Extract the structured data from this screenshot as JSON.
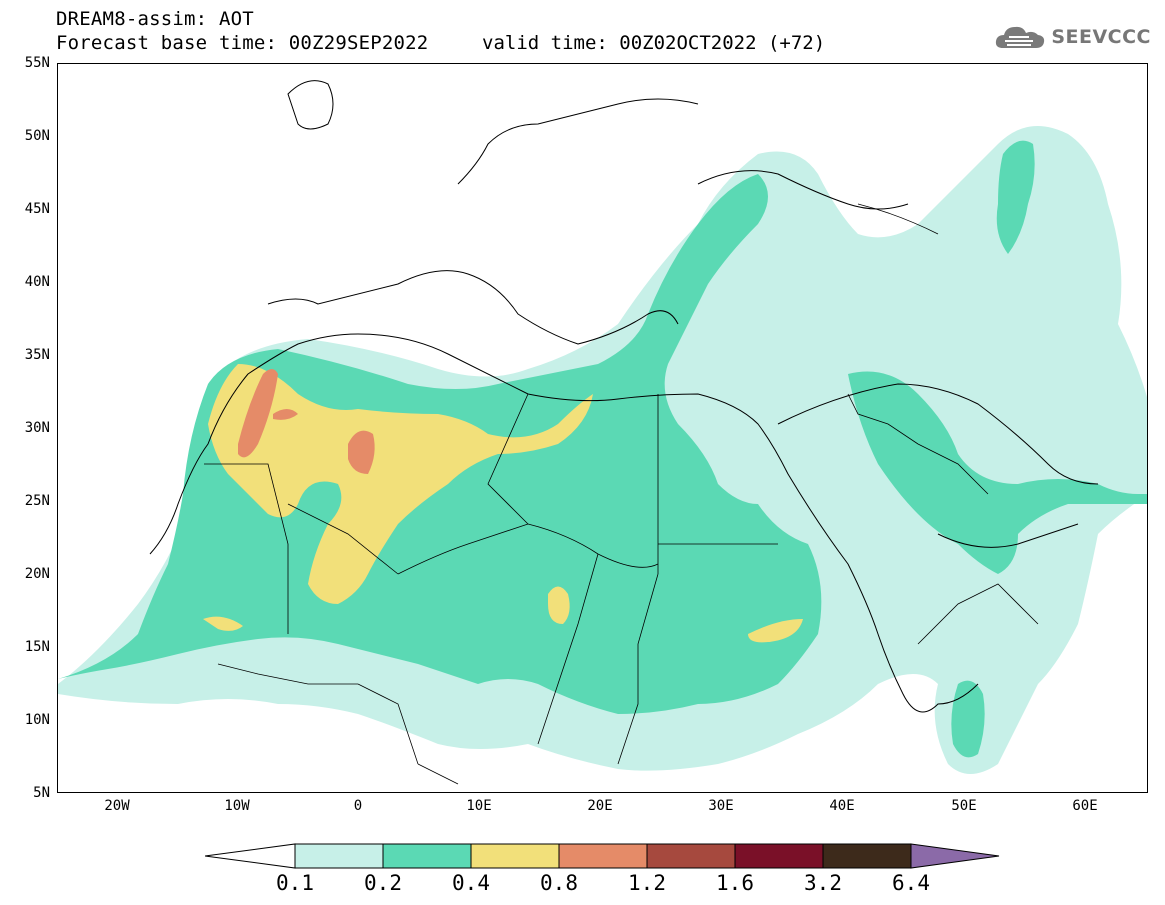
{
  "header": {
    "line1": "DREAM8-assim: AOT",
    "line2_left": "Forecast base time: 00Z29SEP2022",
    "line2_right": "valid time: 00Z02OCT2022 (+72)",
    "logo_text": "SEEVCCC",
    "logo_icon": "cloud-icon"
  },
  "axes": {
    "lat_labels": [
      "55N",
      "50N",
      "45N",
      "40N",
      "35N",
      "30N",
      "25N",
      "20N",
      "15N",
      "10N",
      "5N"
    ],
    "lon_labels": [
      "20W",
      "10W",
      "0",
      "10E",
      "20E",
      "30E",
      "40E",
      "50E",
      "60E"
    ]
  },
  "colorbar": {
    "labels": [
      "0.1",
      "0.2",
      "0.4",
      "0.8",
      "1.2",
      "1.6",
      "3.2",
      "6.4"
    ],
    "colors": [
      "#ffffff",
      "#c7f0e8",
      "#5bd9b4",
      "#f2e07a",
      "#e58b68",
      "#a6493e",
      "#7a1028",
      "#3d2a1b",
      "#8b6aa8"
    ]
  }
}
